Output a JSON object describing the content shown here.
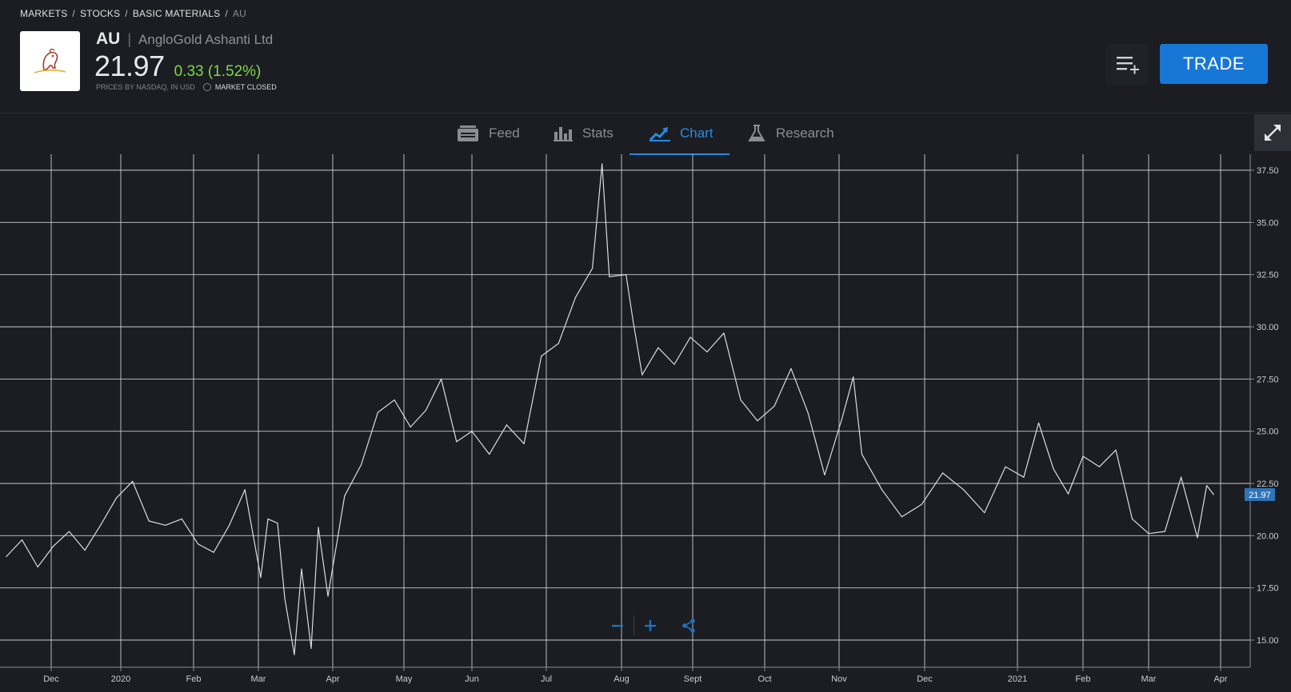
{
  "breadcrumb": [
    "MARKETS",
    "STOCKS",
    "BASIC MATERIALS",
    "AU"
  ],
  "instrument": {
    "ticker": "AU",
    "company": "AngloGold Ashanti Ltd",
    "price": "21.97",
    "change": "0.33 (1.52%)",
    "source": "PRICES BY NASDAQ, IN USD",
    "market_status": "MARKET CLOSED"
  },
  "actions": {
    "trade_label": "TRADE"
  },
  "tabs": [
    {
      "label": "Feed",
      "icon": "feed-icon"
    },
    {
      "label": "Stats",
      "icon": "stats-icon"
    },
    {
      "label": "Chart",
      "icon": "chart-icon",
      "active": true
    },
    {
      "label": "Research",
      "icon": "research-icon"
    }
  ],
  "colors": {
    "accent": "#1777d6",
    "positive": "#7ed84a",
    "background": "#1b1d22",
    "line": "#dcdcdc"
  },
  "chart_data": {
    "type": "line",
    "title": "",
    "xlabel": "",
    "ylabel": "",
    "x_ticks": [
      "Dec",
      "2020",
      "Feb",
      "Mar",
      "Apr",
      "May",
      "Jun",
      "Jul",
      "Aug",
      "Sept",
      "Oct",
      "Nov",
      "Dec",
      "2021",
      "Feb",
      "Mar",
      "Apr"
    ],
    "y_ticks": [
      "37.50",
      "35.00",
      "32.50",
      "30.00",
      "27.50",
      "25.00",
      "22.50",
      "20.00",
      "17.50",
      "15.00"
    ],
    "ylim": [
      14.0,
      38.0
    ],
    "grid": true,
    "last_value_label": "21.97",
    "series": [
      {
        "x": [
          "2019-11-11",
          "2019-11-18",
          "2019-11-25",
          "2019-12-02",
          "2019-12-09",
          "2019-12-16",
          "2019-12-23",
          "2019-12-30",
          "2020-01-06",
          "2020-01-13",
          "2020-01-20",
          "2020-01-27",
          "2020-02-03",
          "2020-02-10",
          "2020-02-17",
          "2020-02-24",
          "2020-03-02",
          "2020-03-05",
          "2020-03-09",
          "2020-03-12",
          "2020-03-16",
          "2020-03-19",
          "2020-03-23",
          "2020-03-26",
          "2020-03-30",
          "2020-04-06",
          "2020-04-13",
          "2020-04-20",
          "2020-04-27",
          "2020-05-04",
          "2020-05-11",
          "2020-05-18",
          "2020-05-25",
          "2020-06-01",
          "2020-06-08",
          "2020-06-15",
          "2020-06-22",
          "2020-06-29",
          "2020-07-06",
          "2020-07-13",
          "2020-07-20",
          "2020-07-24",
          "2020-07-27",
          "2020-08-03",
          "2020-08-06",
          "2020-08-10",
          "2020-08-17",
          "2020-08-24",
          "2020-08-31",
          "2020-09-07",
          "2020-09-14",
          "2020-09-21",
          "2020-09-28",
          "2020-10-05",
          "2020-10-12",
          "2020-10-19",
          "2020-10-26",
          "2020-11-02",
          "2020-11-06",
          "2020-11-09",
          "2020-11-16",
          "2020-11-23",
          "2020-11-30",
          "2020-12-07",
          "2020-12-14",
          "2020-12-21",
          "2020-12-28",
          "2021-01-04",
          "2021-01-11",
          "2021-01-18",
          "2021-01-25",
          "2021-02-01",
          "2021-02-08",
          "2021-02-15",
          "2021-02-22",
          "2021-03-01",
          "2021-03-08",
          "2021-03-15",
          "2021-03-22",
          "2021-03-26",
          "2021-03-29"
        ],
        "values": [
          19.0,
          19.8,
          18.5,
          19.5,
          20.2,
          19.3,
          20.5,
          21.8,
          22.6,
          20.7,
          20.5,
          20.8,
          19.6,
          19.2,
          20.5,
          22.2,
          18.0,
          20.8,
          20.6,
          17.0,
          14.3,
          18.4,
          14.6,
          20.4,
          17.1,
          21.9,
          23.4,
          25.9,
          26.5,
          25.2,
          26.0,
          27.5,
          24.5,
          25.0,
          23.9,
          25.3,
          24.4,
          28.6,
          29.2,
          31.4,
          32.8,
          37.8,
          32.4,
          32.5,
          30.3,
          27.7,
          29.0,
          28.2,
          29.5,
          28.8,
          29.7,
          26.5,
          25.5,
          26.2,
          28.0,
          25.9,
          22.9,
          25.6,
          27.6,
          23.9,
          22.2,
          20.9,
          21.5,
          23.0,
          22.2,
          21.1,
          23.3,
          22.8,
          25.4,
          23.2,
          22.0,
          23.8,
          23.3,
          24.1,
          20.8,
          20.1,
          20.2,
          22.8,
          19.9,
          22.4,
          21.97
        ]
      }
    ]
  }
}
